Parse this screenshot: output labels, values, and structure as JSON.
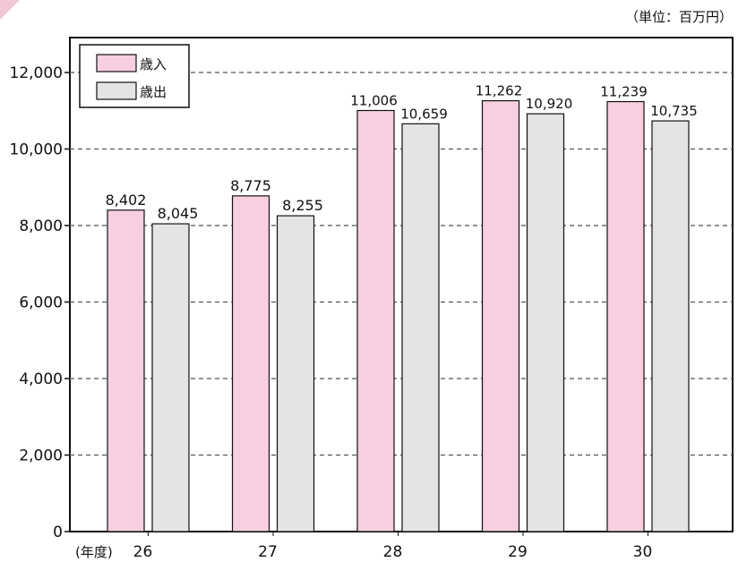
{
  "chart_data": {
    "type": "bar",
    "unit": "（単位：百万円）",
    "x_unit_label": "(年度)",
    "categories": [
      "26",
      "27",
      "28",
      "29",
      "30"
    ],
    "series": [
      {
        "name": "歳入",
        "color": "#f7cfe0",
        "values": [
          8402,
          8775,
          11006,
          11262,
          11239
        ],
        "labels": [
          "8,402",
          "8,775",
          "11,006",
          "11,262",
          "11,239"
        ]
      },
      {
        "name": "歳出",
        "color": "#e4e4e4",
        "values": [
          8045,
          8255,
          10659,
          10920,
          10735
        ],
        "labels": [
          "8,045",
          "8,255",
          "10,659",
          "10,920",
          "10,735"
        ]
      }
    ],
    "ylim": [
      0,
      12000
    ],
    "yticks": [
      0,
      2000,
      4000,
      6000,
      8000,
      10000,
      12000
    ],
    "ytick_labels": [
      "0",
      "2,000",
      "4,000",
      "6,000",
      "8,000",
      "10,000",
      "12,000"
    ],
    "grid": "dashed horizontal",
    "legend": "top-left"
  }
}
